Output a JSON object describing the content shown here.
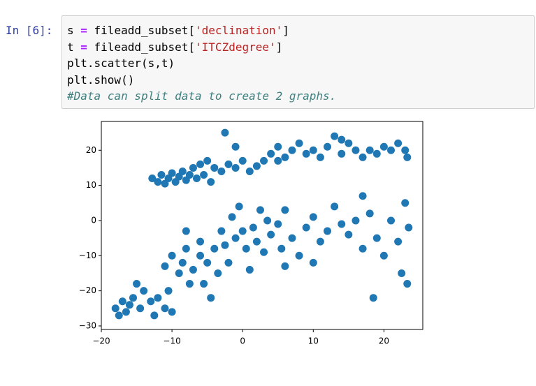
{
  "cell": {
    "prompt": "In [6]:",
    "lines": [
      [
        "s ",
        "=",
        " fileadd_subset[",
        "'declination'",
        "]"
      ],
      [
        "t ",
        "=",
        " fileadd_subset[",
        "'ITCZdegree'",
        "]"
      ],
      [
        "plt.scatter(s,t)"
      ],
      [
        "plt.show()"
      ],
      [
        "#Data can split data to create 2 graphs."
      ]
    ]
  },
  "chart_data": {
    "type": "scatter",
    "color": "#1f77b4",
    "x": [
      -12.8,
      -12,
      -11.5,
      -11,
      -10.5,
      -10,
      -9.5,
      -9,
      -8.5,
      -8,
      -7.5,
      -7,
      -6.5,
      -6,
      -5.5,
      -5,
      -4.5,
      -4,
      -3,
      -2,
      -1,
      0,
      1,
      2,
      3,
      4,
      5,
      6,
      7,
      8,
      9,
      10,
      11,
      12,
      13,
      14,
      15,
      16,
      17,
      18,
      19,
      20,
      21,
      22,
      23,
      23.3,
      -2.5,
      -1,
      5,
      14,
      -18,
      -17.5,
      -17,
      -16.5,
      -16,
      -15.5,
      -15,
      -14.5,
      -14,
      -13,
      -12.5,
      -12,
      -11,
      -10.5,
      -10,
      -11,
      -10,
      -9,
      -8.5,
      -8,
      -7.5,
      -7,
      -6,
      -5.5,
      -5,
      -4.5,
      -4,
      -3.5,
      -3,
      -2.5,
      -2,
      -1.5,
      -1,
      -0.5,
      0,
      0.5,
      1,
      1.5,
      2,
      2.5,
      3,
      3.5,
      4,
      5,
      5.5,
      6,
      7,
      8,
      9,
      10,
      11,
      12,
      13,
      14,
      15,
      16,
      17,
      18,
      18.5,
      19,
      20,
      21,
      22,
      22.5,
      23,
      23.3,
      23.5,
      17,
      10,
      6,
      -6,
      -8
    ],
    "values": [
      12,
      11,
      13,
      10.5,
      12,
      13.5,
      11,
      12.5,
      14,
      11.5,
      13,
      15,
      12,
      16,
      13,
      17,
      11,
      15,
      14,
      16,
      15,
      17,
      14,
      15.5,
      17,
      19,
      21,
      18,
      20,
      22,
      19,
      20,
      18,
      21,
      24,
      19,
      22,
      20,
      18,
      20,
      19,
      21,
      20,
      22,
      20,
      18,
      25,
      21,
      17,
      23,
      -25,
      -27,
      -23,
      -26,
      -24,
      -22,
      -18,
      -25,
      -20,
      -23,
      -27,
      -22,
      -25,
      -20,
      -26,
      -13,
      -10,
      -15,
      -12,
      -8,
      -18,
      -14,
      -10,
      -18,
      -12,
      -22,
      -8,
      -15,
      -3,
      -7,
      -12,
      1,
      -5,
      4,
      -3,
      -8,
      -14,
      -2,
      -6,
      3,
      -9,
      0,
      -4,
      -1,
      -8,
      3,
      -5,
      -10,
      -2,
      1,
      -6,
      -3,
      4,
      -1,
      -4,
      0,
      -8,
      2,
      -22,
      -5,
      -10,
      0,
      -6,
      -15,
      5,
      -18,
      -2,
      7,
      -12,
      -13,
      -6,
      -3
    ],
    "xlim": [
      -20,
      25.5
    ],
    "ylim": [
      -31,
      28.2
    ],
    "xticks": [
      {
        "value": -20,
        "label": "−20"
      },
      {
        "value": -10,
        "label": "−10"
      },
      0,
      10,
      20
    ],
    "yticks": [
      {
        "value": -30,
        "label": "−30"
      },
      {
        "value": -20,
        "label": "−20"
      },
      {
        "value": -10,
        "label": "−10"
      },
      0,
      10,
      20
    ]
  }
}
